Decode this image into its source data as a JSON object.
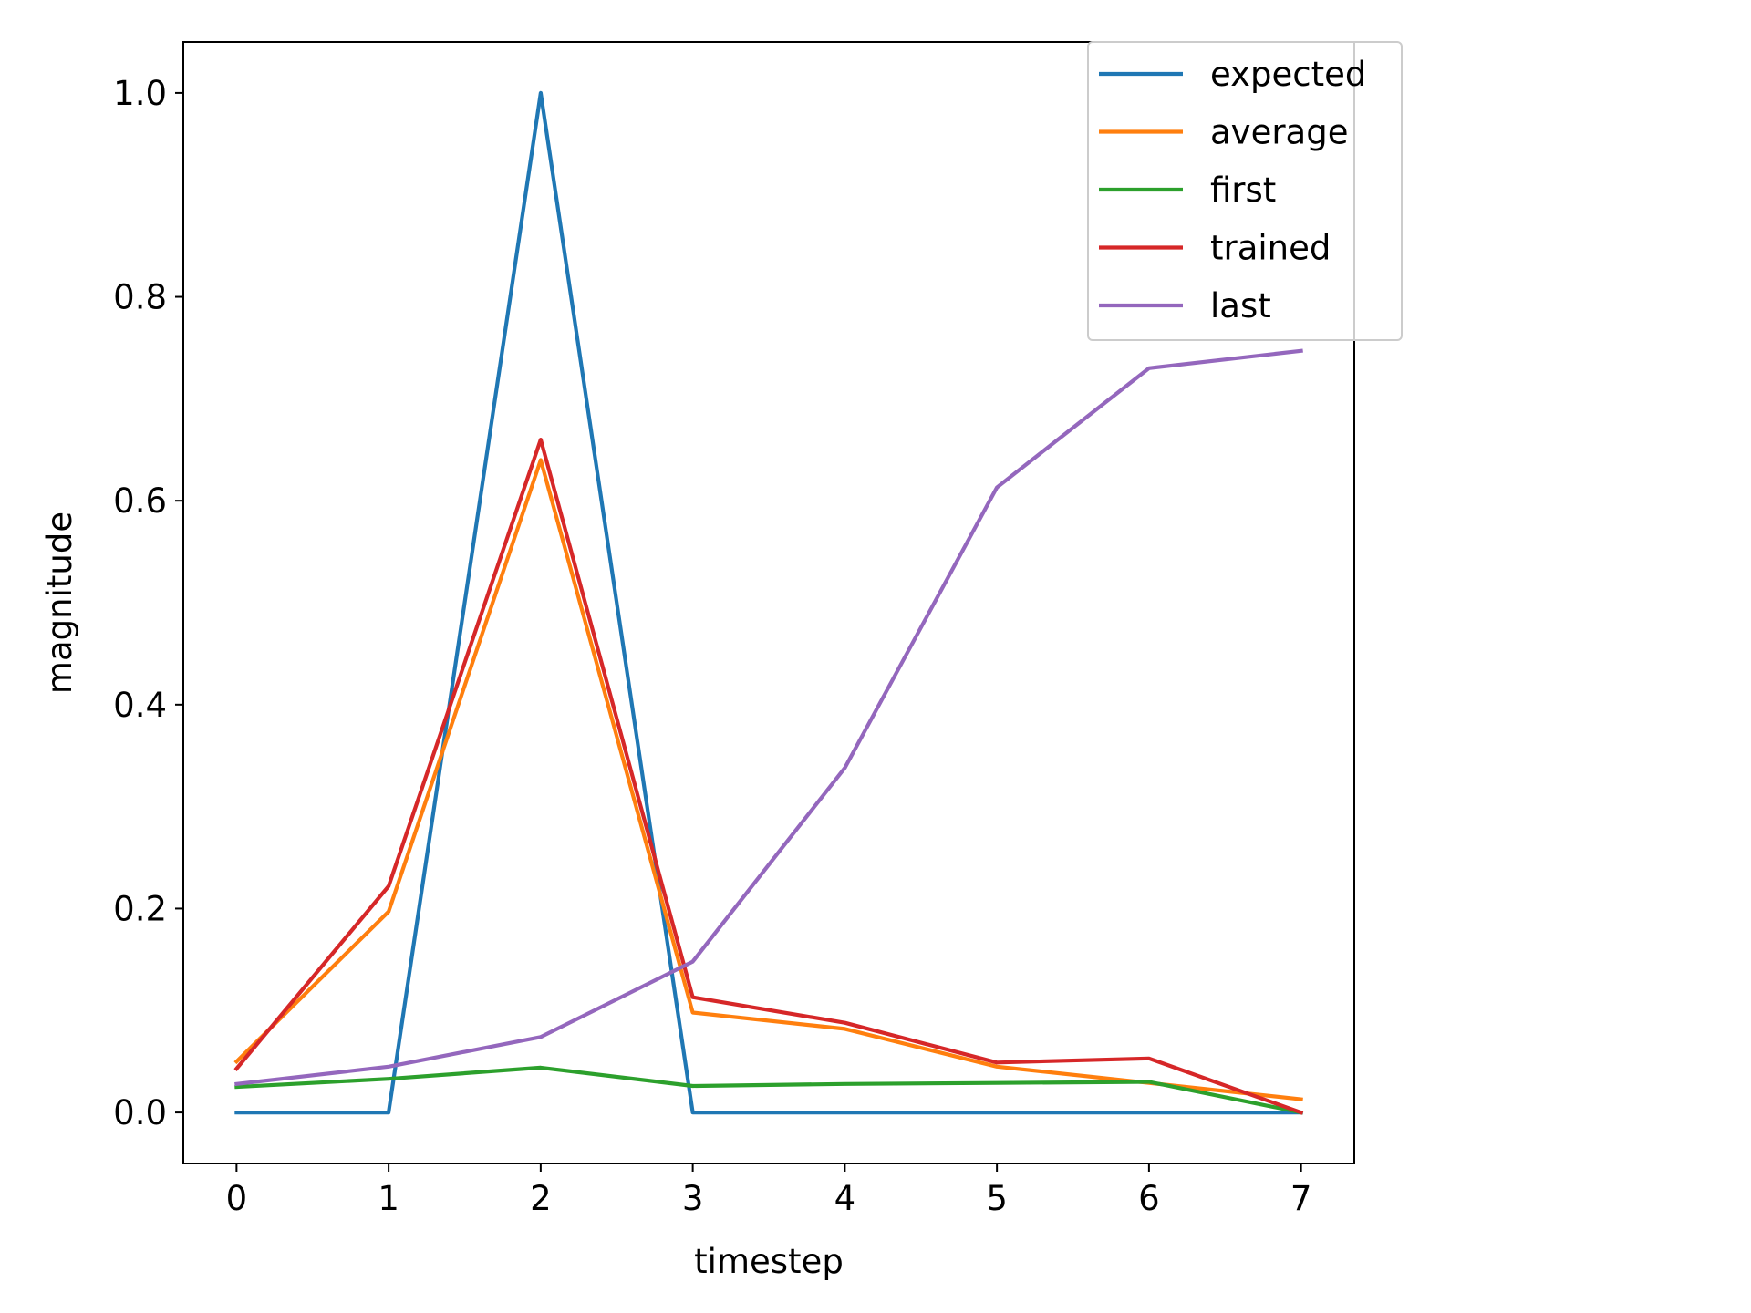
{
  "chart_data": {
    "type": "line",
    "title": "",
    "xlabel": "timestep",
    "ylabel": "magnitude",
    "x": [
      0,
      1,
      2,
      3,
      4,
      5,
      6,
      7
    ],
    "xlim": [
      -0.35,
      7.35
    ],
    "ylim": [
      -0.05,
      1.05
    ],
    "xticks": [
      "0",
      "1",
      "2",
      "3",
      "4",
      "5",
      "6",
      "7"
    ],
    "yticks": [
      "0.0",
      "0.2",
      "0.4",
      "0.6",
      "0.8",
      "1.0"
    ],
    "grid": false,
    "legend_position": "top-right",
    "series": [
      {
        "name": "expected",
        "color": "#1f77b4",
        "values": [
          0,
          0,
          1.0,
          0,
          0,
          0,
          0,
          0
        ]
      },
      {
        "name": "average",
        "color": "#ff7f0e",
        "values": [
          0.05,
          0.197,
          0.64,
          0.098,
          0.082,
          0.045,
          0.029,
          0.013
        ]
      },
      {
        "name": "first",
        "color": "#2ca02c",
        "values": [
          0.025,
          0.033,
          0.044,
          0.026,
          0.028,
          0.029,
          0.03,
          0.0
        ]
      },
      {
        "name": "trained",
        "color": "#d62728",
        "values": [
          0.043,
          0.222,
          0.66,
          0.113,
          0.088,
          0.049,
          0.053,
          0.0
        ]
      },
      {
        "name": "last",
        "color": "#9467bd",
        "values": [
          0.028,
          0.045,
          0.074,
          0.148,
          0.338,
          0.613,
          0.73,
          0.747
        ]
      }
    ]
  }
}
